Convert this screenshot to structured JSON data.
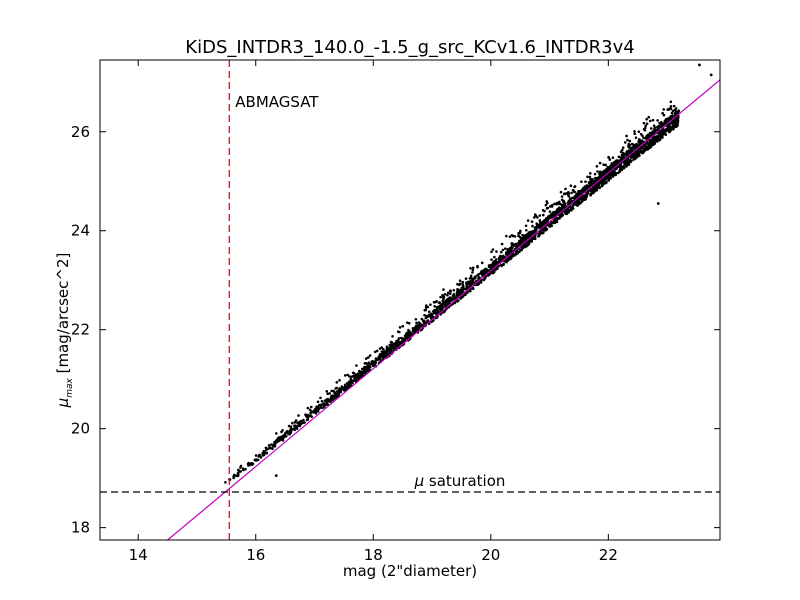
{
  "chart_data": {
    "type": "scatter",
    "title": "KiDS_INTDR3_140.0_-1.5_g_src_KCv1.6_INTDR3v4",
    "xlabel": "mag (2\"diameter)",
    "ylabel": "[mag/arcsec^2]",
    "ylabel_symbol": "μ",
    "ylabel_subscript": "max",
    "xlim": [
      13.35,
      23.9
    ],
    "ylim": [
      17.75,
      27.45
    ],
    "x_ticks": [
      14,
      16,
      18,
      20,
      22
    ],
    "x_tick_labels": [
      "14",
      "16",
      "18",
      "20",
      "22"
    ],
    "y_ticks": [
      18,
      20,
      22,
      24,
      26
    ],
    "y_tick_labels": [
      "18",
      "20",
      "22",
      "24",
      "26"
    ],
    "grid": false,
    "annotations": {
      "abmagsat": {
        "text": "ABMAGSAT",
        "x": 15.55,
        "color": "#ff0000"
      },
      "saturation": {
        "symbol": "μ",
        "text": "saturation",
        "y": 18.72,
        "color": "#000000"
      }
    },
    "fit_line": {
      "x": [
        14.5,
        23.9
      ],
      "y": [
        17.75,
        27.05
      ],
      "color": "#c000c0"
    },
    "series": [
      {
        "color": "#000000",
        "locus": {
          "x": [
            15.3,
            23.2
          ],
          "y": [
            18.7,
            26.3
          ]
        },
        "points": [
          [
            22.85,
            24.55
          ],
          [
            16.35,
            19.05
          ],
          [
            23.75,
            27.15
          ],
          [
            23.55,
            27.35
          ]
        ]
      }
    ]
  }
}
